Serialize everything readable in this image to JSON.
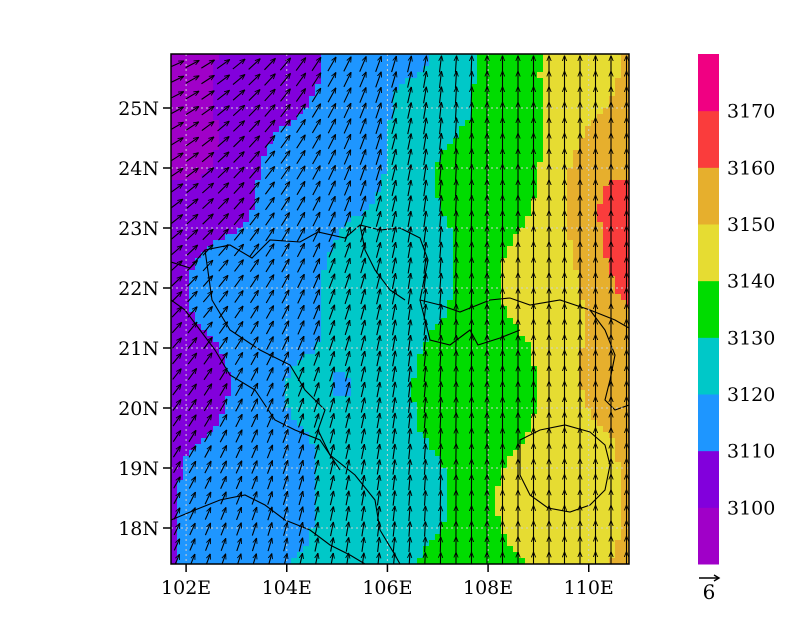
{
  "map": {
    "lat_labels": [
      "25N",
      "24N",
      "23N",
      "22N",
      "21N",
      "20N",
      "19N",
      "18N"
    ],
    "lon_labels": [
      "102E",
      "104E",
      "106E",
      "108E",
      "110E"
    ],
    "lat_values": [
      25,
      24,
      23,
      22,
      21,
      20,
      19,
      18
    ],
    "lon_values": [
      102,
      104,
      106,
      108,
      110
    ],
    "lon_range": [
      101.7,
      110.8
    ],
    "lat_range": [
      17.4,
      25.9
    ],
    "field_min": 3090,
    "field_max": 3180,
    "wind_reference_label": "6",
    "colorbar": {
      "tick_labels": [
        "3100",
        "3110",
        "3120",
        "3130",
        "3140",
        "3150",
        "3160",
        "3170"
      ],
      "levels": [
        3090,
        3100,
        3110,
        3120,
        3130,
        3140,
        3150,
        3160,
        3170,
        3180
      ],
      "colors": [
        "#a000c8",
        "#8200dc",
        "#1e96ff",
        "#00c8c8",
        "#00dc00",
        "#e6dc32",
        "#e6af2d",
        "#fa3c3c",
        "#f00082"
      ]
    }
  }
}
